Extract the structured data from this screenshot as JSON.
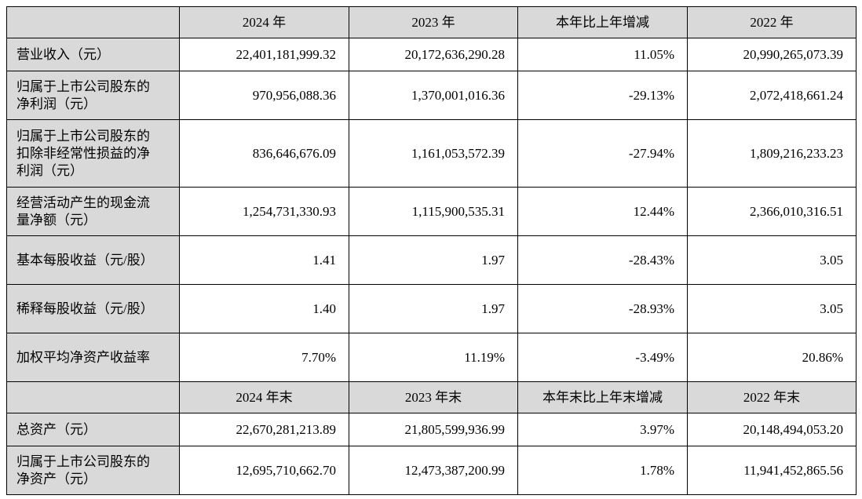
{
  "table": {
    "colors": {
      "header_bg": "#d9d9d9",
      "label_bg": "#d9d9d9",
      "cell_bg": "#ffffff",
      "border": "#000000"
    },
    "sections": [
      {
        "header": [
          "",
          "2024 年",
          "2023 年",
          "本年比上年增减",
          "2022 年"
        ],
        "rows": [
          {
            "label": "营业收入（元）",
            "values": [
              "22,401,181,999.32",
              "20,172,636,290.28",
              "11.05%",
              "20,990,265,073.39"
            ]
          },
          {
            "label": "归属于上市公司股东的净利润（元）",
            "values": [
              "970,956,088.36",
              "1,370,001,016.36",
              "-29.13%",
              "2,072,418,661.24"
            ]
          },
          {
            "label": "归属于上市公司股东的扣除非经常性损益的净利润（元）",
            "values": [
              "836,646,676.09",
              "1,161,053,572.39",
              "-27.94%",
              "1,809,216,233.23"
            ]
          },
          {
            "label": "经营活动产生的现金流量净额（元）",
            "values": [
              "1,254,731,330.93",
              "1,115,900,535.31",
              "12.44%",
              "2,366,010,316.51"
            ]
          },
          {
            "label": "基本每股收益（元/股）",
            "values": [
              "1.41",
              "1.97",
              "-28.43%",
              "3.05"
            ]
          },
          {
            "label": "稀释每股收益（元/股）",
            "values": [
              "1.40",
              "1.97",
              "-28.93%",
              "3.05"
            ]
          },
          {
            "label": "加权平均净资产收益率",
            "values": [
              "7.70%",
              "11.19%",
              "-3.49%",
              "20.86%"
            ]
          }
        ]
      },
      {
        "header": [
          "",
          "2024 年末",
          "2023 年末",
          "本年末比上年末增减",
          "2022 年末"
        ],
        "rows": [
          {
            "label": "总资产（元）",
            "values": [
              "22,670,281,213.89",
              "21,805,599,936.99",
              "3.97%",
              "20,148,494,053.20"
            ]
          },
          {
            "label": "归属于上市公司股东的净资产（元）",
            "values": [
              "12,695,710,662.70",
              "12,473,387,200.99",
              "1.78%",
              "11,941,452,865.56"
            ]
          }
        ]
      }
    ]
  }
}
